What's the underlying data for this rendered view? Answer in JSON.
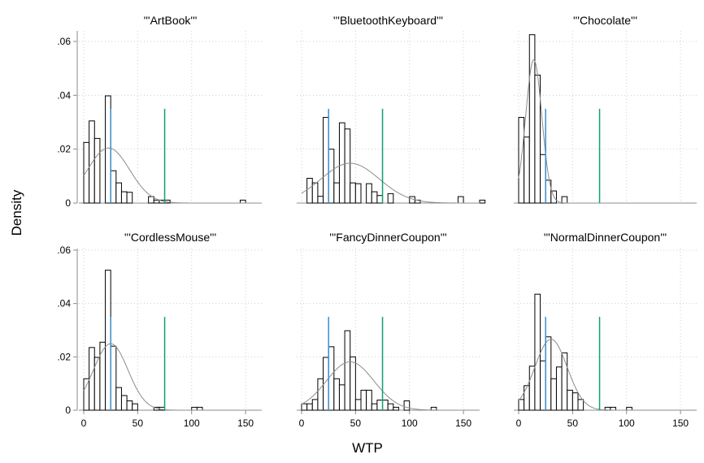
{
  "figure": {
    "ylabel": "Density",
    "xlabel": "WTP"
  },
  "chart_data": [
    {
      "type": "histogram",
      "title": "'''ArtBook'''",
      "xlim": [
        0,
        165
      ],
      "ylim": [
        0,
        0.065
      ],
      "bin_width": 5,
      "bins": [
        {
          "x0": 0,
          "h": 0.0225
        },
        {
          "x0": 5,
          "h": 0.0305
        },
        {
          "x0": 10,
          "h": 0.024
        },
        {
          "x0": 20,
          "h": 0.0398
        },
        {
          "x0": 25,
          "h": 0.012
        },
        {
          "x0": 30,
          "h": 0.0075
        },
        {
          "x0": 35,
          "h": 0.0042
        },
        {
          "x0": 40,
          "h": 0.004
        },
        {
          "x0": 60,
          "h": 0.0024
        },
        {
          "x0": 65,
          "h": 0.0011
        },
        {
          "x0": 70,
          "h": 0.0011
        },
        {
          "x0": 75,
          "h": 0.0011
        },
        {
          "x0": 145,
          "h": 0.0011
        }
      ],
      "normal": {
        "mean": 23,
        "sd": 19.5
      },
      "vlines": [
        {
          "x": 25,
          "y": 0.035,
          "color": "#3a8fcf"
        },
        {
          "x": 75,
          "y": 0.035,
          "color": "#0f9e78"
        }
      ]
    },
    {
      "type": "histogram",
      "title": "'''BluetoothKeyboard'''",
      "xlim": [
        0,
        165
      ],
      "ylim": [
        0,
        0.065
      ],
      "bin_width": 5,
      "bins": [
        {
          "x0": 5,
          "h": 0.0092
        },
        {
          "x0": 10,
          "h": 0.0075
        },
        {
          "x0": 15,
          "h": 0.0025
        },
        {
          "x0": 20,
          "h": 0.0318
        },
        {
          "x0": 25,
          "h": 0.02
        },
        {
          "x0": 30,
          "h": 0.0075
        },
        {
          "x0": 35,
          "h": 0.0298
        },
        {
          "x0": 40,
          "h": 0.0275
        },
        {
          "x0": 45,
          "h": 0.0075
        },
        {
          "x0": 50,
          "h": 0.0072
        },
        {
          "x0": 60,
          "h": 0.0072
        },
        {
          "x0": 65,
          "h": 0.0042
        },
        {
          "x0": 70,
          "h": 0.0028
        },
        {
          "x0": 80,
          "h": 0.0035
        },
        {
          "x0": 100,
          "h": 0.0024
        },
        {
          "x0": 105,
          "h": 0.0011
        },
        {
          "x0": 145,
          "h": 0.0024
        },
        {
          "x0": 165,
          "h": 0.0011
        }
      ],
      "normal": {
        "mean": 45,
        "sd": 27
      },
      "vlines": [
        {
          "x": 25,
          "y": 0.035,
          "color": "#3a8fcf"
        },
        {
          "x": 75,
          "y": 0.035,
          "color": "#0f9e78"
        }
      ]
    },
    {
      "type": "histogram",
      "title": "'''Chocolate'''",
      "xlim": [
        0,
        165
      ],
      "ylim": [
        0,
        0.065
      ],
      "bin_width": 5,
      "bins": [
        {
          "x0": 0,
          "h": 0.0318
        },
        {
          "x0": 5,
          "h": 0.0245
        },
        {
          "x0": 10,
          "h": 0.0625
        },
        {
          "x0": 15,
          "h": 0.0475
        },
        {
          "x0": 20,
          "h": 0.018
        },
        {
          "x0": 25,
          "h": 0.0085
        },
        {
          "x0": 30,
          "h": 0.0045
        },
        {
          "x0": 40,
          "h": 0.0024
        }
      ],
      "normal": {
        "mean": 14,
        "sd": 7.5
      },
      "vlines": [
        {
          "x": 25,
          "y": 0.035,
          "color": "#3a8fcf"
        },
        {
          "x": 75,
          "y": 0.035,
          "color": "#0f9e78"
        }
      ]
    },
    {
      "type": "histogram",
      "title": "'''CordlessMouse'''",
      "xlim": [
        0,
        165
      ],
      "ylim": [
        0,
        0.065
      ],
      "bin_width": 5,
      "bins": [
        {
          "x0": 0,
          "h": 0.0118
        },
        {
          "x0": 5,
          "h": 0.0235
        },
        {
          "x0": 10,
          "h": 0.0198
        },
        {
          "x0": 15,
          "h": 0.0255
        },
        {
          "x0": 20,
          "h": 0.0525
        },
        {
          "x0": 25,
          "h": 0.024
        },
        {
          "x0": 30,
          "h": 0.0085
        },
        {
          "x0": 35,
          "h": 0.0055
        },
        {
          "x0": 40,
          "h": 0.0035
        },
        {
          "x0": 45,
          "h": 0.0024
        },
        {
          "x0": 65,
          "h": 0.0011
        },
        {
          "x0": 70,
          "h": 0.0011
        },
        {
          "x0": 100,
          "h": 0.0011
        },
        {
          "x0": 105,
          "h": 0.0011
        }
      ],
      "normal": {
        "mean": 25,
        "sd": 16
      },
      "vlines": [
        {
          "x": 25,
          "y": 0.035,
          "color": "#3a8fcf"
        },
        {
          "x": 75,
          "y": 0.035,
          "color": "#0f9e78"
        }
      ]
    },
    {
      "type": "histogram",
      "title": "'''FancyDinnerCoupon'''",
      "xlim": [
        0,
        165
      ],
      "ylim": [
        0,
        0.065
      ],
      "bin_width": 5,
      "bins": [
        {
          "x0": 0,
          "h": 0.0024
        },
        {
          "x0": 5,
          "h": 0.0024
        },
        {
          "x0": 10,
          "h": 0.004
        },
        {
          "x0": 15,
          "h": 0.0118
        },
        {
          "x0": 20,
          "h": 0.0198
        },
        {
          "x0": 25,
          "h": 0.0238
        },
        {
          "x0": 30,
          "h": 0.0118
        },
        {
          "x0": 35,
          "h": 0.0095
        },
        {
          "x0": 40,
          "h": 0.0298
        },
        {
          "x0": 45,
          "h": 0.02
        },
        {
          "x0": 50,
          "h": 0.004
        },
        {
          "x0": 55,
          "h": 0.0075
        },
        {
          "x0": 60,
          "h": 0.0075
        },
        {
          "x0": 65,
          "h": 0.0024
        },
        {
          "x0": 70,
          "h": 0.0038
        },
        {
          "x0": 75,
          "h": 0.0038
        },
        {
          "x0": 80,
          "h": 0.0024
        },
        {
          "x0": 85,
          "h": 0.0011
        },
        {
          "x0": 95,
          "h": 0.0035
        },
        {
          "x0": 120,
          "h": 0.0011
        }
      ],
      "normal": {
        "mean": 45,
        "sd": 22
      },
      "vlines": [
        {
          "x": 25,
          "y": 0.035,
          "color": "#3a8fcf"
        },
        {
          "x": 75,
          "y": 0.035,
          "color": "#0f9e78"
        }
      ]
    },
    {
      "type": "histogram",
      "title": "'''NormalDinnerCoupon'''",
      "xlim": [
        0,
        165
      ],
      "ylim": [
        0,
        0.065
      ],
      "bin_width": 5,
      "bins": [
        {
          "x0": 0,
          "h": 0.004
        },
        {
          "x0": 5,
          "h": 0.0092
        },
        {
          "x0": 10,
          "h": 0.0165
        },
        {
          "x0": 15,
          "h": 0.0435
        },
        {
          "x0": 20,
          "h": 0.0185
        },
        {
          "x0": 25,
          "h": 0.0275
        },
        {
          "x0": 30,
          "h": 0.0118
        },
        {
          "x0": 35,
          "h": 0.0162
        },
        {
          "x0": 40,
          "h": 0.0215
        },
        {
          "x0": 45,
          "h": 0.0075
        },
        {
          "x0": 50,
          "h": 0.0065
        },
        {
          "x0": 55,
          "h": 0.004
        },
        {
          "x0": 80,
          "h": 0.0011
        },
        {
          "x0": 85,
          "h": 0.0011
        },
        {
          "x0": 100,
          "h": 0.0011
        }
      ],
      "normal": {
        "mean": 30,
        "sd": 15
      },
      "vlines": [
        {
          "x": 25,
          "y": 0.035,
          "color": "#3a8fcf"
        },
        {
          "x": 75,
          "y": 0.035,
          "color": "#0f9e78"
        }
      ]
    }
  ],
  "axes": {
    "yticks": [
      0,
      0.02,
      0.04,
      0.06
    ],
    "yticklabels": [
      "0",
      ".02",
      ".04",
      ".06"
    ],
    "xticks": [
      0,
      50,
      100,
      150
    ],
    "xticklabels": [
      "0",
      "50",
      "100",
      "150"
    ]
  },
  "style": {
    "bar_fill": "#ffffff",
    "bar_stroke": "#000000",
    "curve_color": "#8c8c8c",
    "grid_color": "#cfcfcf",
    "axis_color": "#8c8c8c"
  }
}
